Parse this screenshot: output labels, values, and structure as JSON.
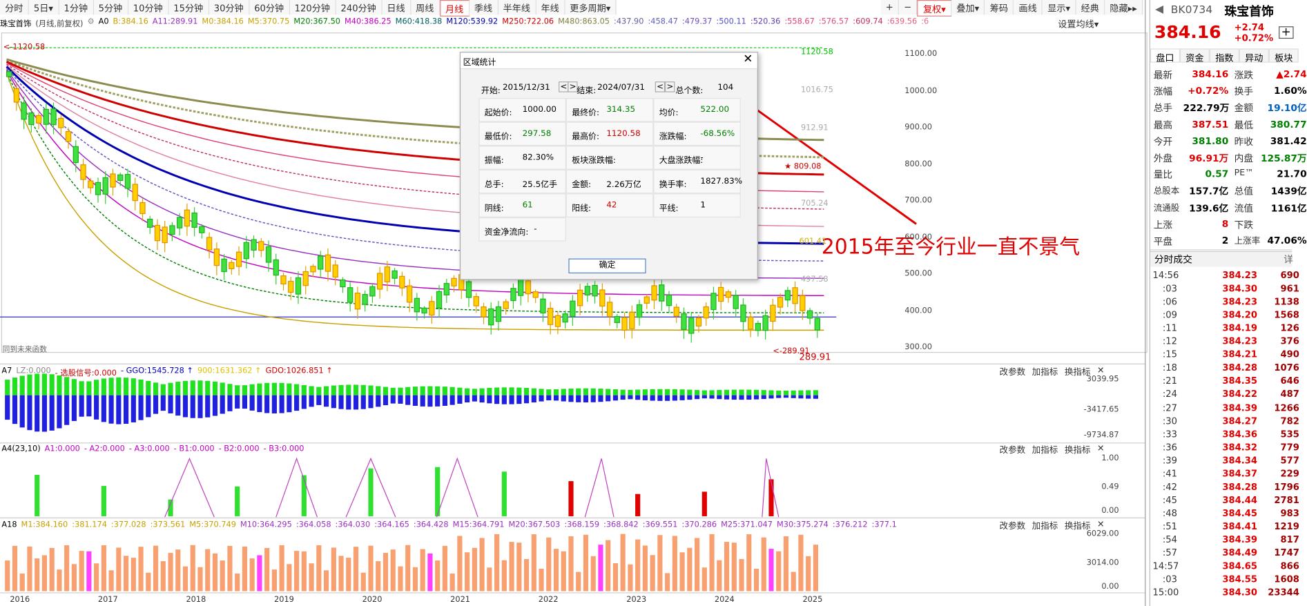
{
  "toolbar": {
    "periods": [
      {
        "label": "分时"
      },
      {
        "label": "5日▾"
      },
      {
        "label": "1分钟"
      },
      {
        "label": "5分钟"
      },
      {
        "label": "10分钟"
      },
      {
        "label": "15分钟"
      },
      {
        "label": "30分钟"
      },
      {
        "label": "60分钟"
      },
      {
        "label": "120分钟"
      },
      {
        "label": "240分钟"
      },
      {
        "label": "日线"
      },
      {
        "label": "周线"
      },
      {
        "label": "月线",
        "selected": true
      },
      {
        "label": "季线"
      },
      {
        "label": "半年线"
      },
      {
        "label": "年线"
      },
      {
        "label": "更多周期▾"
      }
    ],
    "tools": [
      {
        "label": "+"
      },
      {
        "label": "−"
      },
      {
        "label": "复权▾",
        "selected": true
      },
      {
        "label": "叠加▾"
      },
      {
        "label": "筹码"
      },
      {
        "label": "画线"
      },
      {
        "label": "显示▾"
      },
      {
        "label": "经典"
      },
      {
        "label": "隐藏▸▸"
      }
    ]
  },
  "chart_header": {
    "title": "珠宝首饰",
    "subtitle": "(月线,前复权)",
    "items": [
      {
        "text": "A0",
        "color": "#000"
      },
      {
        "text": "B:384.16",
        "color": "#c8a000"
      },
      {
        "text": "A11:289.91",
        "color": "#9a30c0"
      },
      {
        "text": "M0:384.16",
        "color": "#c8a000"
      },
      {
        "text": "M5:370.75",
        "color": "#c8a000"
      },
      {
        "text": "M20:367.50",
        "color": "#008000"
      },
      {
        "text": "M40:386.25",
        "color": "#c000c0"
      },
      {
        "text": "M60:418.38",
        "color": "#006060"
      },
      {
        "text": "M120:539.92",
        "color": "#0000b0"
      },
      {
        "text": "M250:722.06",
        "color": "#d00000"
      },
      {
        "text": "M480:863.05",
        "color": "#808040"
      },
      {
        "text": ":437.90",
        "color": "#6060a0"
      },
      {
        "text": ":458.47",
        "color": "#6060c0"
      },
      {
        "text": ":479.37",
        "color": "#7050c0"
      },
      {
        "text": ":500.11",
        "color": "#5050d0"
      },
      {
        "text": ":520.36",
        "color": "#6040b0"
      },
      {
        "text": ":558.67",
        "color": "#e04070"
      },
      {
        "text": ":576.57",
        "color": "#e05080"
      },
      {
        "text": ":609.74",
        "color": "#c03060"
      },
      {
        "text": ":639.56",
        "color": "#e06080"
      },
      {
        "text": ":6",
        "color": "#e07090"
      }
    ],
    "settings": "设置均线▾"
  },
  "price_axis": [
    "1100.00",
    "1000.00",
    "900.00",
    "800.00",
    "700.00",
    "600.00",
    "500.00",
    "400.00",
    "300.00"
  ],
  "price_marks": [
    "<-1120.58",
    "1120.58",
    "1016.75",
    "912.91",
    "★ 809.08",
    "705.24",
    "601.41",
    "497.58",
    "<-289.91",
    "289.91"
  ],
  "corner_note": "同到未来函数",
  "dialog": {
    "title": "区域统计",
    "start_label": "开始:",
    "start": "2015/12/31",
    "end_label": "结束:",
    "end": "2024/07/31",
    "count_label": "总个数:",
    "count": "104",
    "rows": [
      [
        {
          "label": "起始价:",
          "value": "1000.00",
          "color": "#000"
        },
        {
          "label": "最终价:",
          "value": "314.35",
          "color": "#008000"
        },
        {
          "label": "均价:",
          "value": "522.00",
          "color": "#008000"
        }
      ],
      [
        {
          "label": "最低价:",
          "value": "297.58",
          "color": "#008000"
        },
        {
          "label": "最高价:",
          "value": "1120.58",
          "color": "#d00000"
        },
        {
          "label": "涨跌幅:",
          "value": "-68.56%",
          "color": "#008000"
        }
      ],
      [
        {
          "label": "振幅:",
          "value": "82.30%",
          "color": "#000"
        },
        {
          "label": "板块涨跌幅:",
          "value": "-",
          "color": "#000"
        },
        {
          "label": "大盘涨跌幅:",
          "value": "-",
          "color": "#000"
        }
      ],
      [
        {
          "label": "总手:",
          "value": "25.5亿手",
          "color": "#000"
        },
        {
          "label": "金额:",
          "value": "2.26万亿",
          "color": "#000"
        },
        {
          "label": "换手率:",
          "value": "1827.83%",
          "color": "#000"
        }
      ],
      [
        {
          "label": "阴线:",
          "value": "61",
          "color": "#008000"
        },
        {
          "label": "阳线:",
          "value": "42",
          "color": "#d00000"
        },
        {
          "label": "平线:",
          "value": "1",
          "color": "#000"
        }
      ],
      [
        {
          "label": "资金净流向:",
          "value": "-",
          "color": "#000"
        }
      ]
    ],
    "button": "确定"
  },
  "annotation": "2015年至今行业一直不景气",
  "panels": [
    {
      "items": [
        {
          "text": "A7",
          "color": "#000"
        },
        {
          "text": "LZ:0.000",
          "color": "#888"
        },
        {
          "text": "- 选股信号:0.000",
          "color": "#d00000"
        },
        {
          "text": "- GGO:1545.728 ↑",
          "color": "#0000c0"
        },
        {
          "text": "900:1631.362 ↑",
          "color": "#e0c000"
        },
        {
          "text": "GDO:1026.851 ↑",
          "color": "#d00000"
        }
      ],
      "axis": [
        "3039.95",
        "-3417.65",
        "-9734.87"
      ]
    },
    {
      "items": [
        {
          "text": "A4(23,10)",
          "color": "#000"
        },
        {
          "text": "A1:0.000",
          "color": "#c000c0"
        },
        {
          "text": "- A2:0.000",
          "color": "#c000c0"
        },
        {
          "text": "- A3:0.000",
          "color": "#c000c0"
        },
        {
          "text": "- B1:0.000",
          "color": "#c000c0"
        },
        {
          "text": "- B2:0.000",
          "color": "#c000c0"
        },
        {
          "text": "- B3:0.000",
          "color": "#c000c0"
        }
      ],
      "axis": [
        "1.00",
        "0.49",
        "0.00"
      ]
    },
    {
      "items": [
        {
          "text": "A18",
          "color": "#000"
        },
        {
          "text": "M1:384.160",
          "color": "#c8a000"
        },
        {
          "text": ":381.174",
          "color": "#c8a000"
        },
        {
          "text": ":377.028",
          "color": "#c8a000"
        },
        {
          "text": ":373.561",
          "color": "#c8a000"
        },
        {
          "text": "M5:370.749",
          "color": "#c8a000"
        },
        {
          "text": "M10:364.295",
          "color": "#9a30c0"
        },
        {
          "text": ":364.058",
          "color": "#9a30c0"
        },
        {
          "text": ":364.030",
          "color": "#9a30c0"
        },
        {
          "text": ":364.165",
          "color": "#9a30c0"
        },
        {
          "text": ":364.428",
          "color": "#9a30c0"
        },
        {
          "text": "M15:364.791",
          "color": "#9a30c0"
        },
        {
          "text": "M20:367.503",
          "color": "#9a30c0"
        },
        {
          "text": ":368.159",
          "color": "#9a30c0"
        },
        {
          "text": ":368.842",
          "color": "#9a30c0"
        },
        {
          "text": ":369.551",
          "color": "#9a30c0"
        },
        {
          "text": ":370.286",
          "color": "#9a30c0"
        },
        {
          "text": "M25:371.047",
          "color": "#9a30c0"
        },
        {
          "text": "M30:375.274",
          "color": "#9a30c0"
        },
        {
          "text": ":376.212",
          "color": "#9a30c0"
        },
        {
          "text": ":377.1",
          "color": "#9a30c0"
        }
      ],
      "axis": [
        "6029.00",
        "3014.00",
        "0.00"
      ]
    }
  ],
  "panel_buttons": [
    "改参数",
    "加指标",
    "换指标",
    "✕"
  ],
  "years": [
    "2016",
    "2017",
    "2018",
    "2019",
    "2020",
    "2021",
    "2022",
    "2023",
    "2024",
    "2025"
  ],
  "quote": {
    "code": "BK0734",
    "name": "珠宝首饰",
    "price": "384.16",
    "change": "+2.74",
    "pct": "+0.72%",
    "tabs": [
      "盘口",
      "资金",
      "指数",
      "异动",
      "板块"
    ],
    "rows": [
      [
        {
          "label": "最新",
          "value": "384.16",
          "color": "#e00000"
        },
        {
          "label": "涨跌",
          "value": "▲2.74",
          "color": "#e00000"
        }
      ],
      [
        {
          "label": "涨幅",
          "value": "+0.72%",
          "color": "#e00000"
        },
        {
          "label": "换手",
          "value": "1.60%",
          "color": "#000"
        }
      ],
      [
        {
          "label": "总手",
          "value": "222.79万",
          "color": "#000"
        },
        {
          "label": "金额",
          "value": "19.10亿",
          "color": "#0060c0"
        }
      ],
      [
        {
          "label": "最高",
          "value": "387.51",
          "color": "#e00000"
        },
        {
          "label": "最低",
          "value": "380.77",
          "color": "#008000"
        }
      ],
      [
        {
          "label": "今开",
          "value": "381.80",
          "color": "#008000"
        },
        {
          "label": "昨收",
          "value": "381.42",
          "color": "#000"
        }
      ],
      [
        {
          "label": "外盘",
          "value": "96.91万",
          "color": "#e00000"
        },
        {
          "label": "内盘",
          "value": "125.87万",
          "color": "#008000"
        }
      ],
      [
        {
          "label": "量比",
          "value": "0.57",
          "color": "#008000"
        },
        {
          "label": "PE™",
          "value": "21.70",
          "color": "#000"
        }
      ],
      [
        {
          "label": "总股本",
          "value": "157.7亿",
          "color": "#000"
        },
        {
          "label": "总值",
          "value": "1439亿",
          "color": "#000"
        }
      ],
      [
        {
          "label": "流通股",
          "value": "139.6亿",
          "color": "#000"
        },
        {
          "label": "流值",
          "value": "1161亿",
          "color": "#000"
        }
      ],
      [
        {
          "label": "上涨",
          "value": "8",
          "color": "#e00000"
        },
        {
          "label": "下跌",
          "value": "",
          "color": "#008000"
        }
      ],
      [
        {
          "label": "平盘",
          "value": "2",
          "color": "#000"
        },
        {
          "label": "上涨率",
          "value": "47.06%",
          "color": "#000"
        }
      ]
    ],
    "ticks_title": "分时成交",
    "ticks_more": "详",
    "ticks": [
      [
        "14:56",
        "384.23",
        "690"
      ],
      [
        ":03",
        "384.30",
        "961"
      ],
      [
        ":06",
        "384.23",
        "1138"
      ],
      [
        ":09",
        "384.20",
        "1568"
      ],
      [
        ":11",
        "384.19",
        "126"
      ],
      [
        ":12",
        "384.23",
        "376"
      ],
      [
        ":15",
        "384.21",
        "490"
      ],
      [
        ":18",
        "384.28",
        "1076"
      ],
      [
        ":21",
        "384.35",
        "646"
      ],
      [
        ":24",
        "384.22",
        "487"
      ],
      [
        ":27",
        "384.39",
        "1266"
      ],
      [
        ":30",
        "384.27",
        "782"
      ],
      [
        ":33",
        "384.36",
        "535"
      ],
      [
        ":36",
        "384.32",
        "779"
      ],
      [
        ":39",
        "384.34",
        "577"
      ],
      [
        ":41",
        "384.37",
        "229"
      ],
      [
        ":42",
        "384.28",
        "1796"
      ],
      [
        ":45",
        "384.44",
        "2781"
      ],
      [
        ":48",
        "384.45",
        "983"
      ],
      [
        ":51",
        "384.41",
        "1219"
      ],
      [
        ":54",
        "384.39",
        "817"
      ],
      [
        ":57",
        "384.49",
        "1747"
      ],
      [
        "14:57",
        "384.65",
        "866"
      ],
      [
        ":03",
        "384.55",
        "1608"
      ],
      [
        "15:00",
        "384.30",
        "23344"
      ]
    ]
  }
}
